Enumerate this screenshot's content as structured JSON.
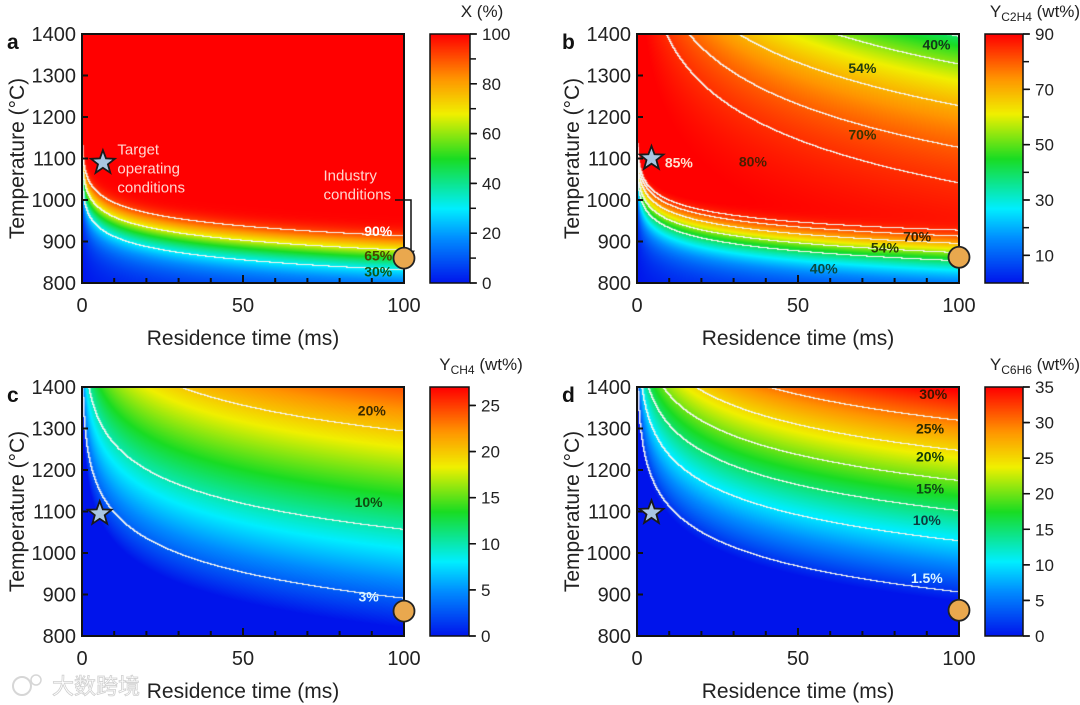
{
  "watermark": "大数跨境",
  "chart_data": [
    {
      "id": "a",
      "type": "heatmap",
      "letter": "a",
      "xlabel": "Residence time (ms)",
      "ylabel": "Temperature (°C)",
      "xlim": [
        0,
        100
      ],
      "ylim": [
        800,
        1400
      ],
      "xticks": [
        "0",
        "50",
        "100"
      ],
      "yticks": [
        "800",
        "900",
        "1000",
        "1100",
        "1200",
        "1300",
        "1400"
      ],
      "colorbar": {
        "title": "X (%)",
        "sub": "",
        "unit": "",
        "min": 0,
        "max": 100,
        "ticks": [
          "0",
          "20",
          "40",
          "60",
          "80",
          "100"
        ],
        "minor_step": 10
      },
      "quantity": "conversion",
      "contour_levels": [
        30,
        65,
        90
      ],
      "contour_labels": [
        {
          "text": "90%",
          "t": 92,
          "T": 925,
          "color": "#ffffff"
        },
        {
          "text": "65%",
          "t": 92,
          "T": 866,
          "color": "#4a4300"
        },
        {
          "text": "30%",
          "t": 92,
          "T": 828,
          "color": "#0b5a12"
        }
      ],
      "annotations": [
        {
          "text": [
            "Target",
            "operating",
            "conditions"
          ],
          "t": 11,
          "T": 1110
        },
        {
          "text": [
            "Industry",
            "conditions"
          ],
          "t": 75,
          "T": 1047
        }
      ],
      "star": {
        "t": 6.5,
        "T": 1090
      },
      "circle": {
        "t": 100,
        "T": 860
      }
    },
    {
      "id": "b",
      "type": "heatmap",
      "letter": "b",
      "xlabel": "Residence time (ms)",
      "ylabel": "Temperature (°C)",
      "xlim": [
        0,
        100
      ],
      "ylim": [
        800,
        1400
      ],
      "xticks": [
        "0",
        "50",
        "100"
      ],
      "yticks": [
        "800",
        "900",
        "1000",
        "1100",
        "1200",
        "1300",
        "1400"
      ],
      "colorbar": {
        "title": "Y",
        "sub": "C2H4",
        "unit": " (wt%)",
        "min": 0,
        "max": 90,
        "ticks": [
          "10",
          "30",
          "50",
          "70",
          "90"
        ],
        "minor_step": 10
      },
      "quantity": "ethylene yield",
      "contour_levels": [
        40,
        54,
        70,
        80,
        85
      ],
      "contour_labels": [
        {
          "text": "40%",
          "t": 93,
          "T": 1375,
          "color": "#13391a"
        },
        {
          "text": "54%",
          "t": 70,
          "T": 1318,
          "color": "#1e3a10"
        },
        {
          "text": "70%",
          "t": 70,
          "T": 1158,
          "color": "#3a3300"
        },
        {
          "text": "80%",
          "t": 36,
          "T": 1093,
          "color": "#4a1e00"
        },
        {
          "text": "85%",
          "t": 13,
          "T": 1090,
          "color": "#ffe0d0"
        },
        {
          "text": "70%",
          "t": 87,
          "T": 912,
          "color": "#3a2200"
        },
        {
          "text": "54%",
          "t": 77,
          "T": 885,
          "color": "#2a3a05"
        },
        {
          "text": "40%",
          "t": 58,
          "T": 835,
          "color": "#0a4a40"
        }
      ],
      "annotations": [],
      "star": {
        "t": 4.5,
        "T": 1100
      },
      "circle": {
        "t": 100,
        "T": 862
      }
    },
    {
      "id": "c",
      "type": "heatmap",
      "letter": "c",
      "xlabel": "Residence time (ms)",
      "ylabel": "Temperature (°C)",
      "xlim": [
        0,
        100
      ],
      "ylim": [
        800,
        1400
      ],
      "xticks": [
        "0",
        "50",
        "100"
      ],
      "yticks": [
        "800",
        "900",
        "1000",
        "1100",
        "1200",
        "1300",
        "1400"
      ],
      "colorbar": {
        "title": "Y",
        "sub": "CH4",
        "unit": " (wt%)",
        "min": 0,
        "max": 27,
        "ticks": [
          "0",
          "5",
          "10",
          "15",
          "20",
          "25"
        ],
        "minor_step": 5
      },
      "quantity": "methane yield",
      "contour_levels": [
        3,
        10,
        20
      ],
      "contour_labels": [
        {
          "text": "20%",
          "t": 90,
          "T": 1343,
          "color": "#3a2a00"
        },
        {
          "text": "10%",
          "t": 89,
          "T": 1123,
          "color": "#0e4a10"
        },
        {
          "text": "3%",
          "t": 89,
          "T": 895,
          "color": "#d8f4ff"
        }
      ],
      "annotations": [],
      "star": {
        "t": 5.5,
        "T": 1095
      },
      "circle": {
        "t": 100,
        "T": 860
      }
    },
    {
      "id": "d",
      "type": "heatmap",
      "letter": "d",
      "xlabel": "Residence time (ms)",
      "ylabel": "Temperature (°C)",
      "xlim": [
        0,
        100
      ],
      "ylim": [
        800,
        1400
      ],
      "xticks": [
        "0",
        "50",
        "100"
      ],
      "yticks": [
        "800",
        "900",
        "1000",
        "1100",
        "1200",
        "1300",
        "1400"
      ],
      "colorbar": {
        "title": "Y",
        "sub": "C6H6",
        "unit": " (wt%)",
        "min": 0,
        "max": 35,
        "ticks": [
          "0",
          "5",
          "10",
          "15",
          "20",
          "25",
          "30",
          "35"
        ],
        "minor_step": 5
      },
      "quantity": "benzene yield",
      "contour_levels": [
        1.5,
        10,
        15,
        20,
        25,
        30
      ],
      "contour_labels": [
        {
          "text": "30%",
          "t": 92,
          "T": 1383,
          "color": "#3a1500"
        },
        {
          "text": "25%",
          "t": 91,
          "T": 1300,
          "color": "#2e2a00"
        },
        {
          "text": "20%",
          "t": 91,
          "T": 1232,
          "color": "#103a0a"
        },
        {
          "text": "15%",
          "t": 91,
          "T": 1155,
          "color": "#0e4a14"
        },
        {
          "text": "10%",
          "t": 90,
          "T": 1080,
          "color": "#0c3c40"
        },
        {
          "text": "1.5%",
          "t": 90,
          "T": 940,
          "color": "#d8f4ff"
        }
      ],
      "annotations": [],
      "star": {
        "t": 4.5,
        "T": 1097
      },
      "circle": {
        "t": 100,
        "T": 862
      }
    }
  ]
}
